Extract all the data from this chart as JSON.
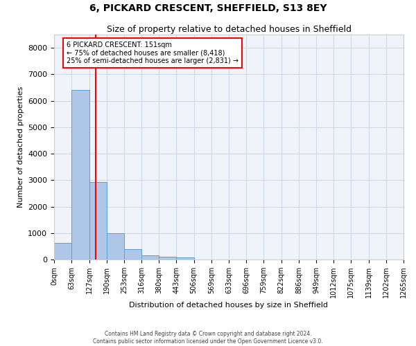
{
  "title": "6, PICKARD CRESCENT, SHEFFIELD, S13 8EY",
  "subtitle": "Size of property relative to detached houses in Sheffield",
  "xlabel": "Distribution of detached houses by size in Sheffield",
  "ylabel": "Number of detached properties",
  "bar_color": "#aec6e8",
  "bar_edge_color": "#5a9fd4",
  "grid_color": "#d0d8e8",
  "background_color": "#f0f4fa",
  "red_line_x": 151,
  "annotation_title": "6 PICKARD CRESCENT: 151sqm",
  "annotation_line1": "← 75% of detached houses are smaller (8,418)",
  "annotation_line2": "25% of semi-detached houses are larger (2,831) →",
  "footer_line1": "Contains HM Land Registry data © Crown copyright and database right 2024.",
  "footer_line2": "Contains public sector information licensed under the Open Government Licence v3.0.",
  "bin_edges": [
    0,
    63,
    127,
    190,
    253,
    316,
    380,
    443,
    506,
    569,
    633,
    696,
    759,
    822,
    886,
    949,
    1012,
    1075,
    1139,
    1202,
    1265
  ],
  "bin_labels": [
    "0sqm",
    "63sqm",
    "127sqm",
    "190sqm",
    "253sqm",
    "316sqm",
    "380sqm",
    "443sqm",
    "506sqm",
    "569sqm",
    "633sqm",
    "696sqm",
    "759sqm",
    "822sqm",
    "886sqm",
    "949sqm",
    "1012sqm",
    "1075sqm",
    "1139sqm",
    "1202sqm",
    "1265sqm"
  ],
  "bar_heights": [
    620,
    6420,
    2920,
    1000,
    380,
    165,
    110,
    80,
    0,
    0,
    0,
    0,
    0,
    0,
    0,
    0,
    0,
    0,
    0,
    0
  ],
  "ylim": [
    0,
    8500
  ],
  "yticks": [
    0,
    1000,
    2000,
    3000,
    4000,
    5000,
    6000,
    7000,
    8000
  ]
}
